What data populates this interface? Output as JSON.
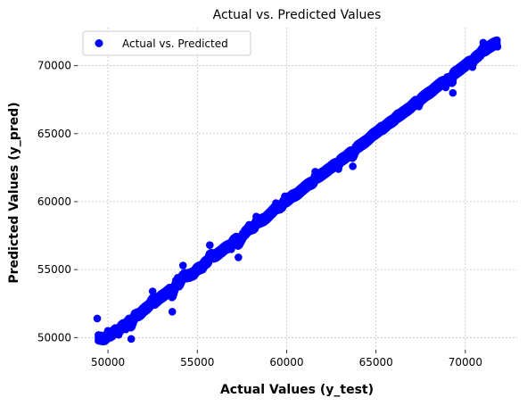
{
  "chart_data": {
    "type": "scatter",
    "title": "Actual vs. Predicted Values",
    "xlabel": "Actual Values (y_test)",
    "ylabel": "Predicted Values (y_pred)",
    "xlim": [
      48300,
      72900
    ],
    "ylim": [
      49100,
      72800
    ],
    "xticks": [
      50000,
      55000,
      60000,
      65000,
      70000
    ],
    "yticks": [
      50000,
      55000,
      60000,
      65000,
      70000
    ],
    "grid": true,
    "legend_position": "top-left",
    "point_color": "#0000ff",
    "series": [
      {
        "name": "Actual vs. Predicted",
        "color": "#0000ff",
        "points": [
          [
            49400,
            51400
          ],
          [
            49800,
            50100
          ],
          [
            50000,
            50500
          ],
          [
            50200,
            50300
          ],
          [
            50400,
            50700
          ],
          [
            50600,
            50200
          ],
          [
            50800,
            51000
          ],
          [
            51000,
            50600
          ],
          [
            51200,
            51300
          ],
          [
            51300,
            49900
          ],
          [
            51500,
            51800
          ],
          [
            51800,
            51600
          ],
          [
            52000,
            52100
          ],
          [
            52300,
            52400
          ],
          [
            52600,
            52500
          ],
          [
            52900,
            53000
          ],
          [
            53200,
            53200
          ],
          [
            53500,
            53600
          ],
          [
            53600,
            51900
          ],
          [
            53800,
            54200
          ],
          [
            54000,
            53800
          ],
          [
            54200,
            55300
          ],
          [
            54500,
            54700
          ],
          [
            54800,
            54500
          ],
          [
            55000,
            55200
          ],
          [
            55300,
            55000
          ],
          [
            55600,
            55700
          ],
          [
            55700,
            56800
          ],
          [
            56000,
            56000
          ],
          [
            56300,
            56300
          ],
          [
            56600,
            56700
          ],
          [
            56900,
            56500
          ],
          [
            57200,
            57400
          ],
          [
            57300,
            55900
          ],
          [
            57600,
            57600
          ],
          [
            57900,
            58300
          ],
          [
            58200,
            58000
          ],
          [
            58500,
            58700
          ],
          [
            58800,
            58600
          ],
          [
            59100,
            59200
          ],
          [
            59400,
            59900
          ],
          [
            59700,
            59500
          ],
          [
            60000,
            60200
          ],
          [
            60300,
            60600
          ],
          [
            60600,
            60500
          ],
          [
            60900,
            61000
          ],
          [
            61200,
            61400
          ],
          [
            61500,
            61300
          ],
          [
            61800,
            62000
          ],
          [
            62100,
            62200
          ],
          [
            62400,
            62500
          ],
          [
            62700,
            62800
          ],
          [
            63000,
            63100
          ],
          [
            63300,
            63200
          ],
          [
            63600,
            63700
          ],
          [
            63700,
            62600
          ],
          [
            63900,
            64100
          ],
          [
            64200,
            64300
          ],
          [
            64500,
            64500
          ],
          [
            64800,
            65100
          ],
          [
            65100,
            65300
          ],
          [
            65400,
            65400
          ],
          [
            65700,
            65900
          ],
          [
            66000,
            66000
          ],
          [
            66300,
            66400
          ],
          [
            66600,
            66700
          ],
          [
            66900,
            66900
          ],
          [
            67200,
            67500
          ],
          [
            67400,
            67000
          ],
          [
            67500,
            67600
          ],
          [
            67800,
            68000
          ],
          [
            68100,
            68100
          ],
          [
            68400,
            68600
          ],
          [
            68700,
            68900
          ],
          [
            69000,
            69000
          ],
          [
            69300,
            68000
          ],
          [
            69300,
            69500
          ],
          [
            69600,
            69700
          ],
          [
            69900,
            70000
          ],
          [
            70200,
            70400
          ],
          [
            70500,
            70600
          ],
          [
            70800,
            70900
          ],
          [
            71100,
            71300
          ],
          [
            71300,
            71500
          ],
          [
            71600,
            71600
          ],
          [
            71800,
            71400
          ],
          [
            71000,
            71700
          ],
          [
            70400,
            69900
          ],
          [
            68900,
            68400
          ],
          [
            66200,
            66500
          ],
          [
            65300,
            65600
          ],
          [
            62900,
            62400
          ],
          [
            61600,
            62200
          ],
          [
            59900,
            60400
          ],
          [
            58300,
            58900
          ],
          [
            57000,
            57200
          ],
          [
            55400,
            55600
          ],
          [
            53900,
            54400
          ],
          [
            52500,
            53400
          ],
          [
            51100,
            51000
          ]
        ]
      }
    ]
  }
}
